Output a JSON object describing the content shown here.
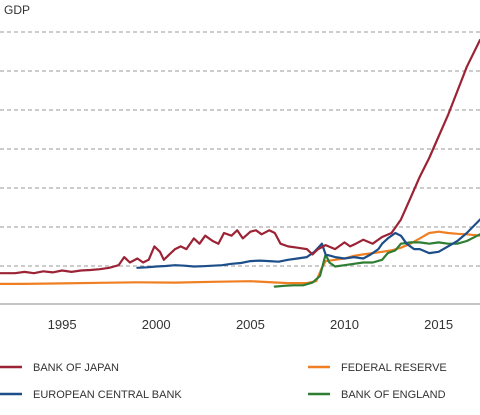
{
  "chart_data": {
    "type": "line",
    "unit_label": "GDP",
    "x_tick_labels": [
      "1995",
      "2000",
      "2005",
      "2010",
      "2015"
    ],
    "x_ticks": [
      1995,
      2000,
      2005,
      2010,
      2015
    ],
    "xlim": [
      1991.7,
      2017.2
    ],
    "ylim": [
      0,
      100
    ],
    "grid": true,
    "legend_placement": "bottom",
    "series": [
      {
        "name": "BANK OF JAPAN",
        "color": "#9b2335",
        "x": [
          1991.7,
          1992.5,
          1993,
          1993.5,
          1994,
          1994.5,
          1995,
          1995.5,
          1996,
          1996.5,
          1997,
          1997.5,
          1998,
          1998.3,
          1998.6,
          1999,
          1999.3,
          1999.6,
          1999.9,
          2000.2,
          2000.4,
          2000.7,
          2001,
          2001.3,
          2001.6,
          2002,
          2002.3,
          2002.6,
          2003,
          2003.3,
          2003.6,
          2004,
          2004.3,
          2004.6,
          2005,
          2005.3,
          2005.6,
          2006,
          2006.3,
          2006.6,
          2007,
          2007.5,
          2008,
          2008.3,
          2008.6,
          2009,
          2009.5,
          2010,
          2010.3,
          2010.6,
          2011,
          2011.5,
          2012,
          2012.5,
          2013,
          2013.5,
          2014,
          2014.5,
          2015,
          2015.5,
          2016,
          2016.5,
          2017.2
        ],
        "y": [
          10,
          10,
          10.5,
          10,
          10.7,
          10.3,
          11,
          10.5,
          11,
          11.2,
          11.5,
          12,
          13,
          16,
          14,
          15.5,
          14,
          15,
          20,
          18,
          15,
          17,
          19,
          20,
          19,
          23,
          21,
          24,
          22,
          21,
          25,
          24,
          26,
          23,
          25.5,
          26,
          24.5,
          26,
          25,
          21,
          20,
          19.5,
          19,
          17,
          19,
          20.5,
          19,
          21.5,
          20,
          21,
          22.5,
          21,
          23.5,
          25,
          30,
          38,
          46,
          53,
          61,
          69,
          78,
          87,
          97
        ]
      },
      {
        "name": "EUROPEAN CENTRAL BANK",
        "color": "#1c4e8a",
        "x": [
          1999,
          1999.5,
          2000,
          2000.5,
          2001,
          2001.5,
          2002,
          2002.5,
          2003,
          2003.5,
          2004,
          2004.5,
          2005,
          2005.5,
          2006,
          2006.5,
          2007,
          2007.5,
          2008,
          2008.4,
          2008.8,
          2009,
          2009.5,
          2010,
          2010.5,
          2011,
          2011.4,
          2011.8,
          2012,
          2012.3,
          2012.7,
          2013,
          2013.3,
          2013.7,
          2014,
          2014.5,
          2015,
          2015.5,
          2016,
          2016.5,
          2017.2
        ],
        "y": [
          12,
          12.2,
          12.5,
          12.7,
          13,
          12.8,
          12.5,
          12.6,
          12.8,
          13,
          13.5,
          13.8,
          14.5,
          14.7,
          14.5,
          14.3,
          15,
          15.5,
          16,
          18,
          21,
          17,
          16,
          15.5,
          16,
          15.5,
          17,
          19,
          21,
          23,
          25,
          24,
          21,
          19,
          19,
          17.5,
          18,
          20,
          22,
          25,
          30
        ]
      },
      {
        "name": "FEDERAL RESERVE",
        "color": "#ef7f22",
        "x": [
          1991.7,
          1993,
          1995,
          1997,
          1999,
          2001,
          2003,
          2005,
          2007,
          2008,
          2008.5,
          2008.8,
          2009,
          2009.5,
          2010,
          2010.5,
          2011,
          2011.5,
          2012,
          2012.5,
          2013,
          2013.5,
          2014,
          2014.5,
          2015,
          2015.5,
          2016,
          2016.5,
          2017.2
        ],
        "y": [
          6,
          6,
          6.2,
          6.4,
          6.6,
          6.5,
          6.8,
          7,
          6.3,
          6.3,
          7,
          12,
          14.5,
          15,
          15.5,
          16.5,
          17,
          17.5,
          18,
          18.5,
          19.5,
          21,
          23,
          25,
          25.5,
          25,
          24.7,
          24.5,
          24
        ]
      },
      {
        "name": "BANK OF ENGLAND",
        "color": "#2e7d32",
        "x": [
          2006.3,
          2006.8,
          2007.3,
          2007.8,
          2008.3,
          2008.7,
          2009,
          2009.2,
          2009.5,
          2010,
          2010.5,
          2011,
          2011.5,
          2012,
          2012.3,
          2012.7,
          2013,
          2013.5,
          2014,
          2014.5,
          2015,
          2015.5,
          2016,
          2016.5,
          2017.2
        ],
        "y": [
          5,
          5.3,
          5.5,
          5.5,
          6.5,
          9,
          17,
          14,
          12.5,
          13,
          13.5,
          14,
          14,
          15,
          17.5,
          18.5,
          21,
          21.5,
          21.5,
          21,
          21.5,
          21,
          21,
          22,
          24.5
        ]
      }
    ]
  }
}
